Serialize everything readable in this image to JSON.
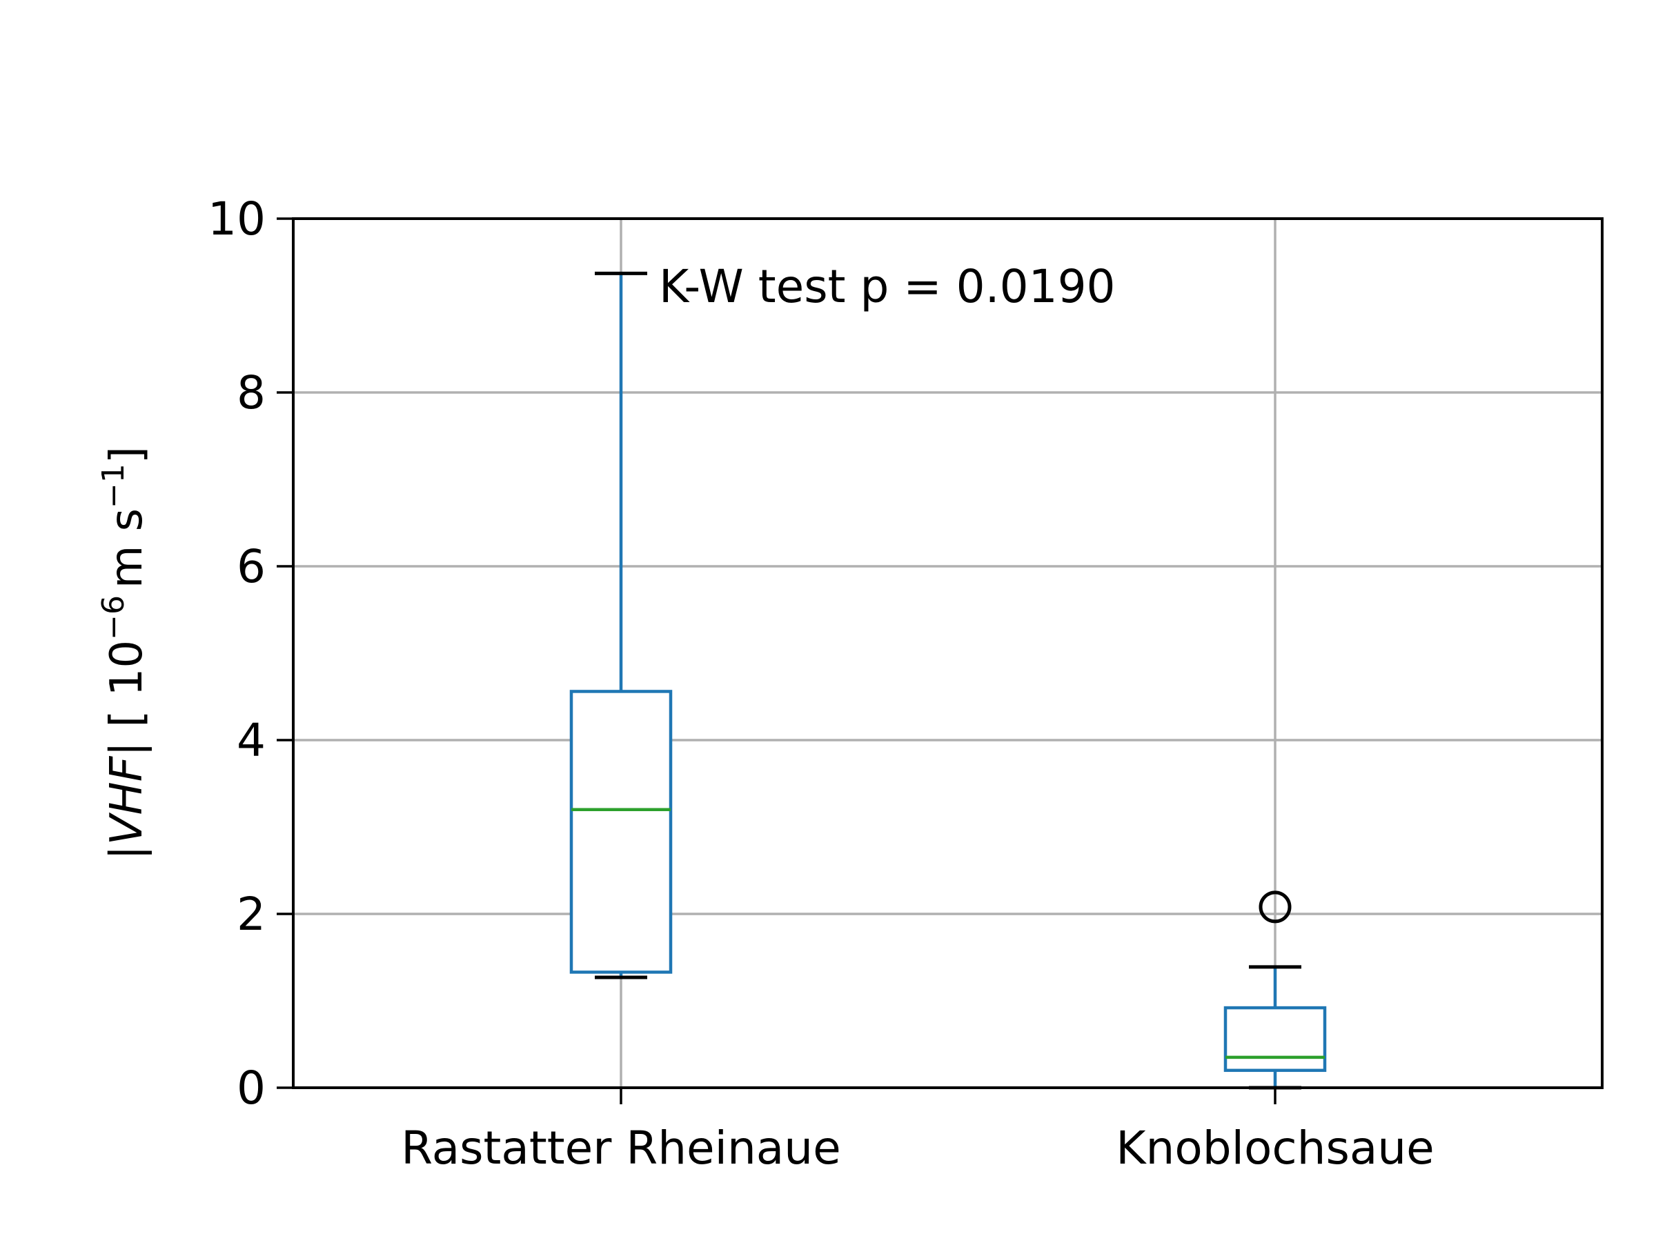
{
  "chart_data": {
    "type": "box",
    "title": "",
    "ylabel": {
      "prefix": "|",
      "var": "VHF",
      "mid": "| [ 10",
      "exp1": "−6",
      "units": "m s",
      "exp2": "−1",
      "close": "]"
    },
    "ylim": [
      0,
      10
    ],
    "yticks": [
      0,
      2,
      4,
      6,
      8,
      10
    ],
    "grid": true,
    "annotation": "K-W test p = 0.0190",
    "categories": [
      "Rastatter Rheinaue",
      "Knoblochsaue"
    ],
    "boxes": [
      {
        "label": "Rastatter Rheinaue",
        "whisker_low": 1.27,
        "q1": 1.33,
        "median": 3.2,
        "q3": 4.56,
        "whisker_high": 9.37,
        "outliers": []
      },
      {
        "label": "Knoblochsaue",
        "whisker_low": 0.0,
        "q1": 0.2,
        "median": 0.35,
        "q3": 0.92,
        "whisker_high": 1.39,
        "outliers": [
          2.08
        ]
      }
    ],
    "colors": {
      "box": "#1f77b4",
      "median": "#2ca02c",
      "whisker_cap": "#000000",
      "grid": "#b0b0b0"
    }
  }
}
